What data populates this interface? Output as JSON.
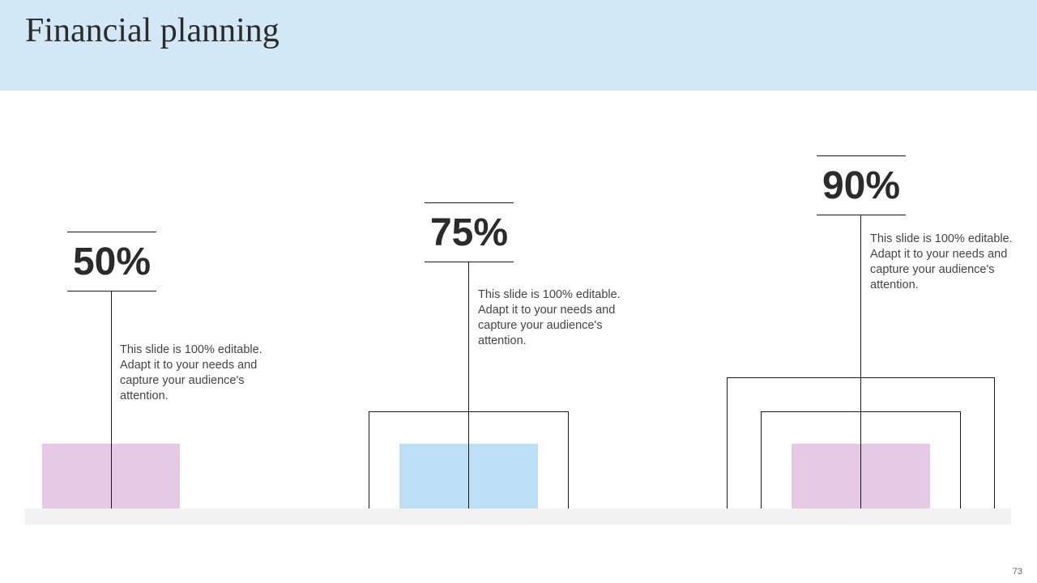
{
  "slide": {
    "title": "Financial planning",
    "page_number": "73"
  },
  "items": [
    {
      "percent": "50%",
      "text": "This slide is 100% editable. Adapt it to your needs and capture your audience's attention.",
      "color": "#e6c9e4"
    },
    {
      "percent": "75%",
      "text": "This slide is 100% editable. Adapt it to your needs and capture your audience's attention.",
      "color": "#bbdff5"
    },
    {
      "percent": "90%",
      "text": "This slide is 100% editable. Adapt it to your needs and capture your audience's attention.",
      "color": "#e6c9e4"
    }
  ],
  "colors": {
    "header_bg": "#d3e8f7",
    "base_bar": "#f2f2f2",
    "line": "#1a1a1a"
  }
}
